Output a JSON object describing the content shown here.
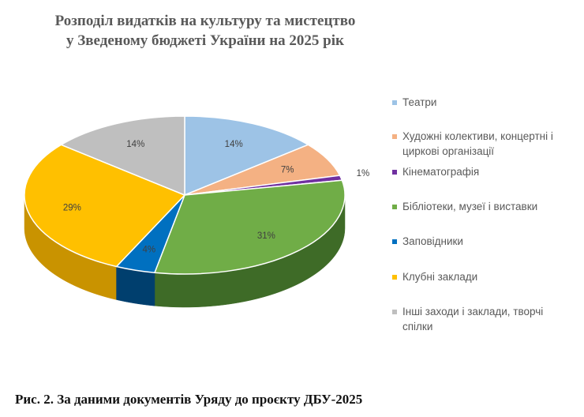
{
  "chart_data": {
    "type": "pie",
    "style": "3d",
    "title": "Розподіл видатків на культуру та мистецтво у Зведеному бюджеті України на 2025 рік",
    "title_lines": [
      "Розподіл видатків на культуру та мистецтво",
      "у Зведеному бюджеті України на 2025 рік"
    ],
    "slices": [
      {
        "label": "Театри",
        "label_lines": [
          "Театри"
        ],
        "value": 14,
        "value_label": "14%",
        "color": "#9DC3E6",
        "side_color": "#6F8AA4"
      },
      {
        "label": "Художні колективи, концертні і циркові організації",
        "label_lines": [
          "Художні колективи, концертні і",
          "циркові організації"
        ],
        "value": 7,
        "value_label": "7%",
        "color": "#F4B183",
        "side_color": "#B07E5C"
      },
      {
        "label": "Кінематографія",
        "label_lines": [
          "Кінематографія"
        ],
        "value": 1,
        "value_label": "1%",
        "color": "#7030A0",
        "side_color": "#4A1F6B"
      },
      {
        "label": "Бібліотеки, музеї і виставки",
        "label_lines": [
          "Бібліотеки, музеї і виставки"
        ],
        "value": 31,
        "value_label": "31%",
        "color": "#70AD47",
        "side_color": "#3E6B27"
      },
      {
        "label": "Заповідники",
        "label_lines": [
          "Заповідники"
        ],
        "value": 4,
        "value_label": "4%",
        "color": "#0070C0",
        "side_color": "#003F6E"
      },
      {
        "label": "Клубні заклади",
        "label_lines": [
          "Клубні заклади"
        ],
        "value": 29,
        "value_label": "29%",
        "color": "#FFC000",
        "side_color": "#C99300"
      },
      {
        "label": "Інші заходи і заклади, творчі спілки",
        "label_lines": [
          "Інші заходи і заклади, творчі",
          "спілки"
        ],
        "value": 14,
        "value_label": "14%",
        "color": "#BFBFBF",
        "side_color": "#8C8C8C"
      }
    ],
    "legend_position": "right"
  },
  "caption": "Рис. 2. За даними документів Уряду до проєкту ДБУ-2025"
}
